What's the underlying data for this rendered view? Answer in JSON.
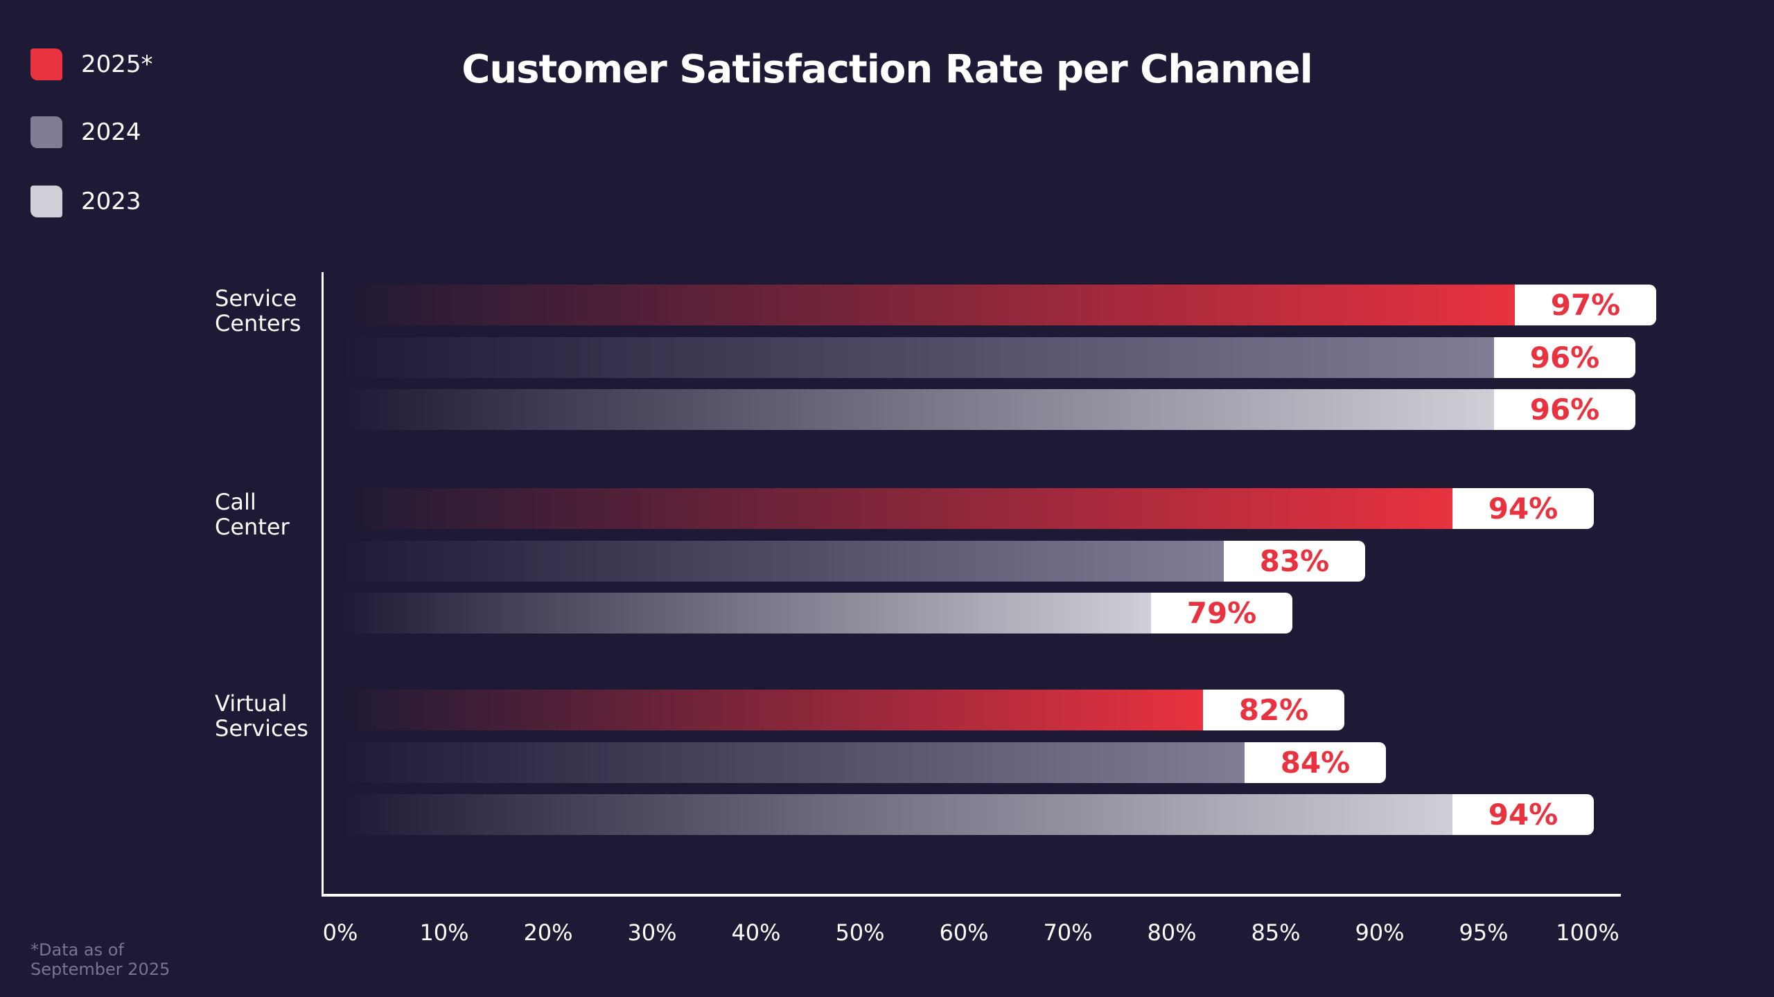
{
  "chart_data": {
    "type": "bar",
    "orientation": "horizontal",
    "title": "Customer Satisfaction Rate per Channel",
    "categories": [
      "Service\nCenters",
      "Call\nCenter",
      "Virtual\nServices"
    ],
    "series": [
      {
        "name": "2025*",
        "color": "#e8323f",
        "values": [
          97,
          94,
          82
        ],
        "labels": [
          "97%",
          "94%",
          "82%"
        ]
      },
      {
        "name": "2024",
        "color": "#807d95",
        "values": [
          96,
          83,
          84
        ],
        "labels": [
          "96%",
          "83%",
          "84%"
        ]
      },
      {
        "name": "2023",
        "color": "#d0cfd7",
        "values": [
          96,
          79,
          94
        ],
        "labels": [
          "96%",
          "79%",
          "94%"
        ]
      }
    ],
    "xticks": [
      0,
      10,
      20,
      30,
      40,
      50,
      60,
      70,
      80,
      85,
      90,
      95,
      100
    ],
    "xtick_labels": [
      "0%",
      "10%",
      "20%",
      "30%",
      "40%",
      "50%",
      "60%",
      "70%",
      "80%",
      "85%",
      "90%",
      "95%",
      "100%"
    ],
    "xlim": [
      0,
      100
    ],
    "xscale": "non-uniform (tick spacing equal)",
    "grid": false,
    "legend_position": "top-left",
    "footnote": "*Data as of\nSeptember 2025"
  }
}
